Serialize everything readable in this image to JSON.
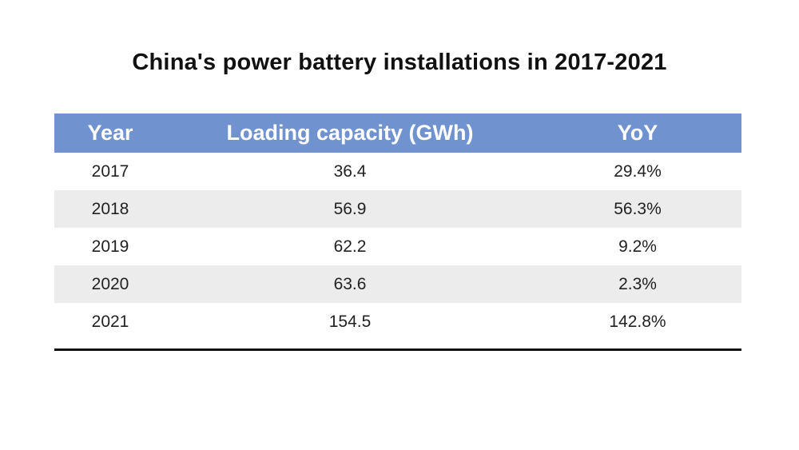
{
  "chart_data": {
    "type": "table",
    "title": "China's power battery installations in 2017-2021",
    "columns": [
      "Year",
      "Loading capacity (GWh)",
      "YoY"
    ],
    "rows": [
      [
        "2017",
        "36.4",
        "29.4%"
      ],
      [
        "2018",
        "56.9",
        "56.3%"
      ],
      [
        "2019",
        "62.2",
        "9.2%"
      ],
      [
        "2020",
        "63.6",
        "2.3%"
      ],
      [
        "2021",
        "154.5",
        "142.8%"
      ]
    ]
  },
  "colors": {
    "header_bg": "#7092cf",
    "header_text": "#ffffff",
    "stripe_bg": "#ececec",
    "rule": "#111111"
  }
}
